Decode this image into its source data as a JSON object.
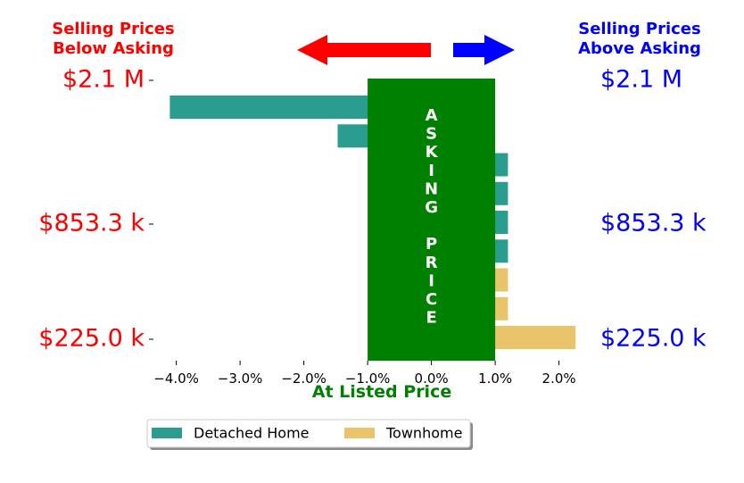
{
  "chart_data": {
    "type": "bar",
    "orientation": "horizontal",
    "x_unit": "%",
    "xlabel": "At Listed Price",
    "xlim": [
      -4.4,
      2.3
    ],
    "xticks": [
      -4.0,
      -3.0,
      -2.0,
      -1.0,
      0.0,
      1.0,
      2.0
    ],
    "xtick_labels": [
      "−4.0%",
      "−3.0%",
      "−2.0%",
      "−1.0%",
      "0.0%",
      "1.0%",
      "2.0%"
    ],
    "left_header": "Selling Prices\nBelow Asking",
    "right_header": "Selling Prices\nAbove Asking",
    "left_price_labels": [
      "$2.1 M",
      "$853.3 k",
      "$225.0 k"
    ],
    "right_price_labels": [
      "$2.1 M",
      "$853.3 k",
      "$225.0 k"
    ],
    "center_band": {
      "text": "ASKING PRICE",
      "range": [
        -1.0,
        1.0
      ]
    },
    "series": [
      {
        "name": "Detached Home",
        "color": "#2a9d8f"
      },
      {
        "name": "Townhome",
        "color": "#e9c46a"
      }
    ],
    "bars": [
      {
        "series": "Detached Home",
        "value": -4.1
      },
      {
        "series": "Detached Home",
        "value": -1.47
      },
      {
        "series": "Detached Home",
        "value": 1.2
      },
      {
        "series": "Detached Home",
        "value": 1.2
      },
      {
        "series": "Detached Home",
        "value": 1.2
      },
      {
        "series": "Detached Home",
        "value": 1.2
      },
      {
        "series": "Townhome",
        "value": 1.2
      },
      {
        "series": "Townhome",
        "value": 1.2
      },
      {
        "series": "Townhome",
        "value": 2.26
      }
    ],
    "legend_position": "bottom-center",
    "colors": {
      "band": "#008000",
      "left_text": "#ff0000",
      "right_text": "#0000ff",
      "arrow_left": "#ff0000",
      "arrow_right": "#0000ff"
    }
  }
}
